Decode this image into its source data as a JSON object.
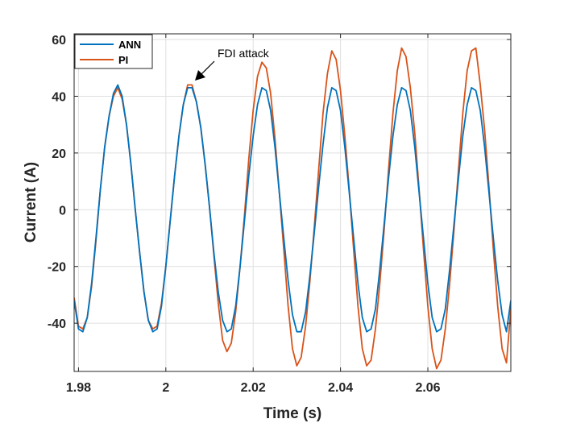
{
  "chart_data": {
    "type": "line",
    "title": "",
    "xlabel": "Time (s)",
    "ylabel": "Current (A)",
    "xlim": [
      1.979,
      2.079
    ],
    "ylim": [
      -57,
      62
    ],
    "xticks": [
      1.98,
      2.0,
      2.02,
      2.04,
      2.06
    ],
    "xtick_labels": [
      "1.98",
      "2",
      "2.02",
      "2.04",
      "2.06"
    ],
    "yticks": [
      -40,
      -20,
      0,
      20,
      40,
      60
    ],
    "ytick_labels": [
      "-40",
      "-20",
      "0",
      "20",
      "40",
      "60"
    ],
    "grid": true,
    "legend_position": "top-left",
    "series": [
      {
        "name": "ANN",
        "color": "#0072BD",
        "x": [
          1.979,
          1.98,
          1.981,
          1.982,
          1.983,
          1.984,
          1.985,
          1.986,
          1.987,
          1.988,
          1.989,
          1.99,
          1.991,
          1.992,
          1.993,
          1.994,
          1.995,
          1.996,
          1.997,
          1.998,
          1.999,
          2.0,
          2.001,
          2.002,
          2.003,
          2.004,
          2.005,
          2.006,
          2.007,
          2.008,
          2.009,
          2.01,
          2.011,
          2.012,
          2.013,
          2.014,
          2.015,
          2.016,
          2.017,
          2.018,
          2.019,
          2.02,
          2.021,
          2.022,
          2.023,
          2.024,
          2.025,
          2.026,
          2.027,
          2.028,
          2.029,
          2.03,
          2.031,
          2.032,
          2.033,
          2.034,
          2.035,
          2.036,
          2.037,
          2.038,
          2.039,
          2.04,
          2.041,
          2.042,
          2.043,
          2.044,
          2.045,
          2.046,
          2.047,
          2.048,
          2.049,
          2.05,
          2.051,
          2.052,
          2.053,
          2.054,
          2.055,
          2.056,
          2.057,
          2.058,
          2.059,
          2.06,
          2.061,
          2.062,
          2.063,
          2.064,
          2.065,
          2.066,
          2.067,
          2.068,
          2.069,
          2.07,
          2.071,
          2.072,
          2.073,
          2.074,
          2.075,
          2.076,
          2.077,
          2.078,
          2.079
        ],
        "y": [
          -32,
          -42,
          -43,
          -38,
          -26,
          -10,
          7,
          22,
          33,
          41,
          44,
          40,
          30,
          16,
          0,
          -15,
          -29,
          -39,
          -43,
          -42,
          -34,
          -20,
          -4,
          12,
          26,
          37,
          43,
          43,
          38,
          29,
          16,
          1,
          -15,
          -29,
          -39,
          -43,
          -42,
          -34,
          -20,
          -4,
          12,
          26,
          37,
          43,
          42,
          35,
          22,
          6,
          -10,
          -25,
          -37,
          -43,
          -43,
          -36,
          -23,
          -8,
          8,
          23,
          36,
          43,
          42,
          35,
          22,
          6,
          -10,
          -26,
          -38,
          -43,
          -42,
          -35,
          -21,
          -5,
          11,
          26,
          37,
          43,
          42,
          35,
          22,
          6,
          -10,
          -26,
          -38,
          -43,
          -42,
          -35,
          -21,
          -5,
          11,
          26,
          37,
          43,
          42,
          35,
          22,
          6,
          -10,
          -25,
          -37,
          -43,
          -32
        ]
      },
      {
        "name": "PI",
        "color": "#D95319",
        "x": [
          1.979,
          1.98,
          1.981,
          1.982,
          1.983,
          1.984,
          1.985,
          1.986,
          1.987,
          1.988,
          1.989,
          1.99,
          1.991,
          1.992,
          1.993,
          1.994,
          1.995,
          1.996,
          1.997,
          1.998,
          1.999,
          2.0,
          2.001,
          2.002,
          2.003,
          2.004,
          2.005,
          2.006,
          2.007,
          2.008,
          2.009,
          2.01,
          2.011,
          2.012,
          2.013,
          2.014,
          2.015,
          2.016,
          2.017,
          2.018,
          2.019,
          2.02,
          2.021,
          2.022,
          2.023,
          2.024,
          2.025,
          2.026,
          2.027,
          2.028,
          2.029,
          2.03,
          2.031,
          2.032,
          2.033,
          2.034,
          2.035,
          2.036,
          2.037,
          2.038,
          2.039,
          2.04,
          2.041,
          2.042,
          2.043,
          2.044,
          2.045,
          2.046,
          2.047,
          2.048,
          2.049,
          2.05,
          2.051,
          2.052,
          2.053,
          2.054,
          2.055,
          2.056,
          2.057,
          2.058,
          2.059,
          2.06,
          2.061,
          2.062,
          2.063,
          2.064,
          2.065,
          2.066,
          2.067,
          2.068,
          2.069,
          2.07,
          2.071,
          2.072,
          2.073,
          2.074,
          2.075,
          2.076,
          2.077,
          2.078,
          2.079
        ],
        "y": [
          -31,
          -41,
          -42,
          -38,
          -27,
          -11,
          7,
          22,
          33,
          40,
          43,
          39,
          30,
          16,
          0,
          -15,
          -29,
          -39,
          -42,
          -41,
          -33,
          -20,
          -4,
          12,
          26,
          37,
          44,
          44,
          38,
          29,
          16,
          1,
          -16,
          -33,
          -46,
          -50,
          -47,
          -36,
          -20,
          -2,
          18,
          35,
          47,
          52,
          50,
          41,
          25,
          6,
          -14,
          -34,
          -49,
          -55,
          -52,
          -41,
          -25,
          -6,
          14,
          34,
          48,
          56,
          53,
          42,
          26,
          7,
          -14,
          -34,
          -49,
          -55,
          -53,
          -42,
          -26,
          -7,
          14,
          34,
          49,
          57,
          54,
          43,
          27,
          7,
          -14,
          -34,
          -49,
          -56,
          -53,
          -42,
          -26,
          -7,
          14,
          34,
          49,
          56,
          57,
          44,
          28,
          8,
          -14,
          -34,
          -49,
          -54,
          -35
        ]
      }
    ],
    "annotations": [
      {
        "text": "FDI attack",
        "x": 2.0075,
        "y": 46
      }
    ]
  }
}
